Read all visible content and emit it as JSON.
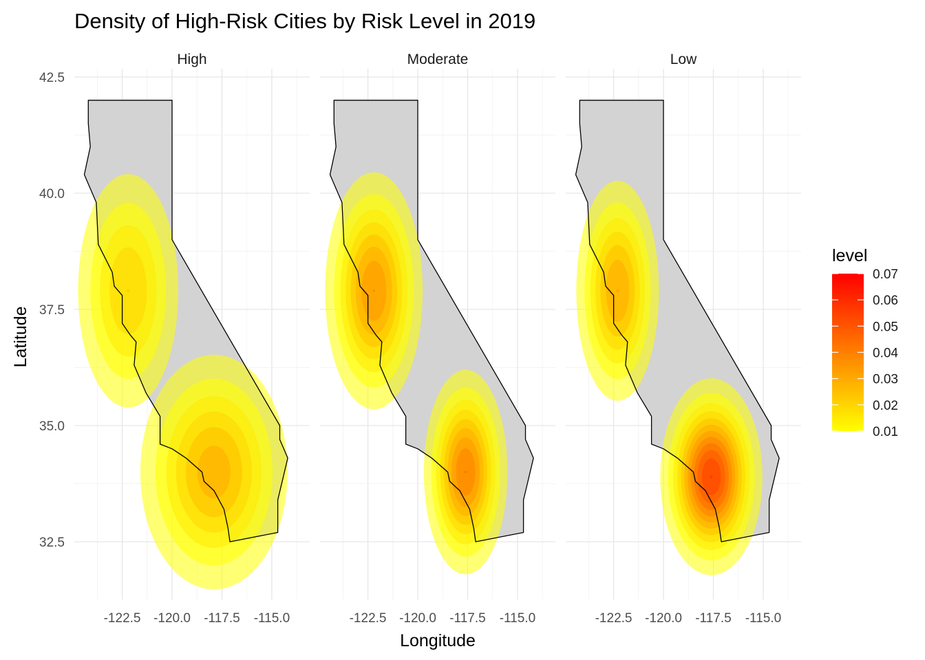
{
  "chart_data": {
    "type": "density-contour-map",
    "title": "Density of High-Risk Cities by Risk Level in 2019",
    "xlabel": "Longitude",
    "ylabel": "Latitude",
    "xlim": [
      -124.9,
      -113.1
    ],
    "ylim": [
      31.2,
      42.5
    ],
    "x_ticks": [
      -122.5,
      -120.0,
      -117.5,
      -115.0
    ],
    "x_tick_labels": [
      "-122.5",
      "-120.0",
      "-117.5",
      "-115.0"
    ],
    "y_ticks": [
      32.5,
      35.0,
      37.5,
      40.0,
      42.5
    ],
    "y_tick_labels": [
      "32.5",
      "35.0",
      "37.5",
      "40.0",
      "42.5"
    ],
    "grid": true,
    "legend": {
      "title": "level",
      "placement": "right",
      "type": "colorbar",
      "min": 0.01,
      "max": 0.07,
      "labels": [
        "0.07",
        "0.06",
        "0.05",
        "0.04",
        "0.03",
        "0.02",
        "0.01"
      ],
      "color_low": "#ffff00",
      "color_high": "#ff0000"
    },
    "map_fill": "#d3d3d3",
    "map_outline": "#000000",
    "state_outline_lonlat": [
      [
        -124.2,
        42.0
      ],
      [
        -120.0,
        42.0
      ],
      [
        -120.0,
        39.0
      ],
      [
        -114.6,
        35.0
      ],
      [
        -114.6,
        34.7
      ],
      [
        -114.2,
        34.3
      ],
      [
        -114.7,
        33.4
      ],
      [
        -114.7,
        32.7
      ],
      [
        -117.1,
        32.5
      ],
      [
        -117.2,
        32.8
      ],
      [
        -117.4,
        33.2
      ],
      [
        -117.9,
        33.6
      ],
      [
        -118.4,
        33.8
      ],
      [
        -118.5,
        34.0
      ],
      [
        -119.3,
        34.3
      ],
      [
        -120.0,
        34.5
      ],
      [
        -120.6,
        34.6
      ],
      [
        -120.6,
        35.2
      ],
      [
        -121.3,
        35.7
      ],
      [
        -121.9,
        36.3
      ],
      [
        -121.8,
        36.8
      ],
      [
        -122.1,
        36.95
      ],
      [
        -122.5,
        37.2
      ],
      [
        -122.5,
        37.8
      ],
      [
        -122.9,
        38.0
      ],
      [
        -123.0,
        38.3
      ],
      [
        -123.7,
        38.9
      ],
      [
        -123.8,
        39.8
      ],
      [
        -124.4,
        40.4
      ],
      [
        -124.1,
        41.0
      ],
      [
        -124.2,
        41.5
      ],
      [
        -124.2,
        42.0
      ]
    ],
    "panels": [
      {
        "name": "High",
        "peak_level": 0.035,
        "hotspots": [
          {
            "lon": -122.2,
            "lat": 37.9,
            "peak": 0.025,
            "sx": 1.4,
            "sy": 1.4
          },
          {
            "lon": -117.9,
            "lat": 34.0,
            "peak": 0.033,
            "sx": 1.9,
            "sy": 1.3
          }
        ]
      },
      {
        "name": "Moderate",
        "peak_level": 0.045,
        "hotspots": [
          {
            "lon": -122.2,
            "lat": 37.9,
            "peak": 0.04,
            "sx": 1.2,
            "sy": 1.25
          },
          {
            "lon": -117.6,
            "lat": 34.0,
            "peak": 0.045,
            "sx": 1.0,
            "sy": 1.05
          }
        ]
      },
      {
        "name": "Low",
        "peak_level": 0.06,
        "hotspots": [
          {
            "lon": -122.3,
            "lat": 37.9,
            "peak": 0.035,
            "sx": 1.05,
            "sy": 1.2
          },
          {
            "lon": -117.6,
            "lat": 33.9,
            "peak": 0.06,
            "sx": 1.15,
            "sy": 0.95
          }
        ]
      }
    ]
  }
}
